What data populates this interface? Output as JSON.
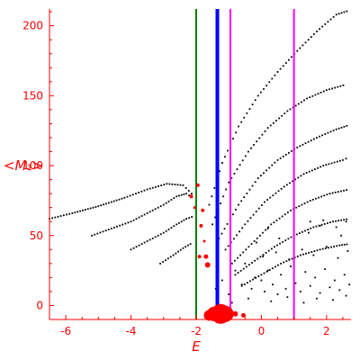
{
  "chart_data": {
    "type": "scatter",
    "xlabel": "E",
    "ylabel": "<M₁>",
    "xlim": [
      -6.5,
      2.75
    ],
    "ylim": [
      -10,
      212
    ],
    "x_ticks": [
      -6,
      -4,
      -2,
      0,
      2
    ],
    "x_tick_labels": [
      "-6",
      "-4",
      "-2",
      "0",
      "2"
    ],
    "y_ticks": [
      0,
      50,
      100,
      150,
      200
    ],
    "y_tick_labels": [
      "0",
      "50",
      "100",
      "150",
      "200"
    ],
    "grid": false,
    "legend": "none",
    "colors": {
      "axes": "#ff0000",
      "points": "#000000",
      "markers": "#ff0000",
      "green_line": "#008000",
      "blue_line": "#0000ff",
      "magenta_line": "#ff00ff"
    },
    "vertical_lines": [
      {
        "x": -2.0,
        "color": "green"
      },
      {
        "x": -1.35,
        "color": "blue"
      },
      {
        "x": -0.95,
        "color": "magenta"
      },
      {
        "x": 1.0,
        "color": "magenta"
      }
    ],
    "point_bands": [
      {
        "x": [
          -6.5,
          -5.8,
          -5.0,
          -4.2,
          -3.5,
          -2.9,
          -2.4,
          -2.05
        ],
        "y": [
          62,
          66,
          71,
          77,
          83,
          87,
          86,
          78
        ]
      },
      {
        "x": [
          -5.2,
          -4.6,
          -4.0,
          -3.5,
          -3.0,
          -2.6,
          -2.3,
          -2.05
        ],
        "y": [
          50,
          55,
          60,
          66,
          72,
          78,
          80,
          76
        ]
      },
      {
        "x": [
          -4.0,
          -3.5,
          -3.0,
          -2.6,
          -2.3,
          -2.05
        ],
        "y": [
          40,
          46,
          52,
          58,
          62,
          64
        ]
      },
      {
        "x": [
          -3.1,
          -2.7,
          -2.4,
          -2.1
        ],
        "y": [
          30,
          36,
          41,
          45
        ]
      },
      {
        "x": [
          -1.6,
          -1.2,
          -0.7,
          -0.1,
          0.5,
          1.1,
          1.7,
          2.3,
          2.7
        ],
        "y": [
          72,
          102,
          128,
          150,
          167,
          182,
          196,
          208,
          211
        ]
      },
      {
        "x": [
          -1.5,
          -1.0,
          -0.4,
          0.2,
          0.8,
          1.4,
          2.0,
          2.6
        ],
        "y": [
          58,
          88,
          110,
          127,
          139,
          148,
          154,
          158
        ]
      },
      {
        "x": [
          -1.3,
          -0.7,
          -0.1,
          0.5,
          1.1,
          1.7,
          2.3,
          2.7
        ],
        "y": [
          48,
          72,
          91,
          104,
          113,
          120,
          126,
          129
        ]
      },
      {
        "x": [
          -1.1,
          -0.5,
          0.1,
          0.7,
          1.3,
          1.9,
          2.5,
          2.7
        ],
        "y": [
          40,
          58,
          74,
          85,
          94,
          100,
          104,
          106
        ]
      },
      {
        "x": [
          -0.9,
          -0.3,
          0.3,
          0.9,
          1.5,
          2.1,
          2.7
        ],
        "y": [
          30,
          44,
          58,
          68,
          75,
          80,
          83
        ]
      },
      {
        "x": [
          -0.8,
          -0.2,
          0.4,
          1.0,
          1.6,
          2.2,
          2.7
        ],
        "y": [
          22,
          32,
          42,
          50,
          56,
          60,
          62
        ]
      },
      {
        "x": [
          -0.6,
          0.0,
          0.6,
          1.2,
          1.8,
          2.4,
          2.7
        ],
        "y": [
          14,
          22,
          30,
          36,
          40,
          43,
          44
        ]
      }
    ],
    "scatter_points": [
      [
        -1.4,
        12
      ],
      [
        -1.2,
        18
      ],
      [
        -1.0,
        8
      ],
      [
        -0.8,
        25
      ],
      [
        -0.6,
        15
      ],
      [
        -0.5,
        30
      ],
      [
        -0.3,
        12
      ],
      [
        -0.2,
        20
      ],
      [
        0.0,
        18
      ],
      [
        0.1,
        10
      ],
      [
        0.2,
        25
      ],
      [
        0.35,
        15
      ],
      [
        0.5,
        8
      ],
      [
        0.6,
        22
      ],
      [
        0.75,
        12
      ],
      [
        0.9,
        28
      ],
      [
        1.05,
        16
      ],
      [
        1.2,
        10
      ],
      [
        1.35,
        24
      ],
      [
        1.5,
        14
      ],
      [
        1.65,
        20
      ],
      [
        1.8,
        9
      ],
      [
        1.95,
        26
      ],
      [
        2.1,
        13
      ],
      [
        2.25,
        18
      ],
      [
        2.4,
        11
      ],
      [
        2.55,
        22
      ],
      [
        2.7,
        15
      ],
      [
        -0.9,
        2
      ],
      [
        -0.4,
        5
      ],
      [
        0.3,
        3
      ],
      [
        0.8,
        6
      ],
      [
        1.3,
        2
      ],
      [
        1.7,
        5
      ],
      [
        2.2,
        4
      ],
      [
        2.6,
        7
      ],
      [
        0.05,
        35
      ],
      [
        0.45,
        38
      ],
      [
        0.85,
        33
      ],
      [
        1.25,
        40
      ],
      [
        1.6,
        36
      ],
      [
        2.0,
        42
      ],
      [
        2.35,
        34
      ],
      [
        2.65,
        39
      ],
      [
        -0.15,
        45
      ],
      [
        0.55,
        48
      ],
      [
        1.45,
        52
      ],
      [
        2.45,
        50
      ],
      [
        0.2,
        55
      ],
      [
        1.0,
        58
      ],
      [
        1.8,
        57
      ],
      [
        2.6,
        60
      ],
      [
        1.5,
        60
      ],
      [
        1.9,
        61
      ],
      [
        2.3,
        56
      ]
    ],
    "red_markers": [
      {
        "x": -1.1,
        "y": -6,
        "size": 9
      },
      {
        "x": -1.25,
        "y": -6,
        "size": 11
      },
      {
        "x": -1.45,
        "y": -6,
        "size": 8
      },
      {
        "x": -1.6,
        "y": -7,
        "size": 6
      },
      {
        "x": -0.8,
        "y": -6,
        "size": 3
      },
      {
        "x": -0.55,
        "y": -7,
        "size": 2.5
      },
      {
        "x": -1.65,
        "y": 29,
        "size": 3
      },
      {
        "x": -1.7,
        "y": 35,
        "size": 2.5
      },
      {
        "x": -1.9,
        "y": 35,
        "size": 2
      },
      {
        "x": -1.85,
        "y": 57,
        "size": 2
      },
      {
        "x": -1.8,
        "y": 68,
        "size": 2
      },
      {
        "x": -2.15,
        "y": 78,
        "size": 2
      },
      {
        "x": -1.95,
        "y": 86,
        "size": 2
      },
      {
        "x": -2.05,
        "y": 70,
        "size": 1.5
      },
      {
        "x": -1.75,
        "y": 46,
        "size": 1.5
      }
    ]
  }
}
